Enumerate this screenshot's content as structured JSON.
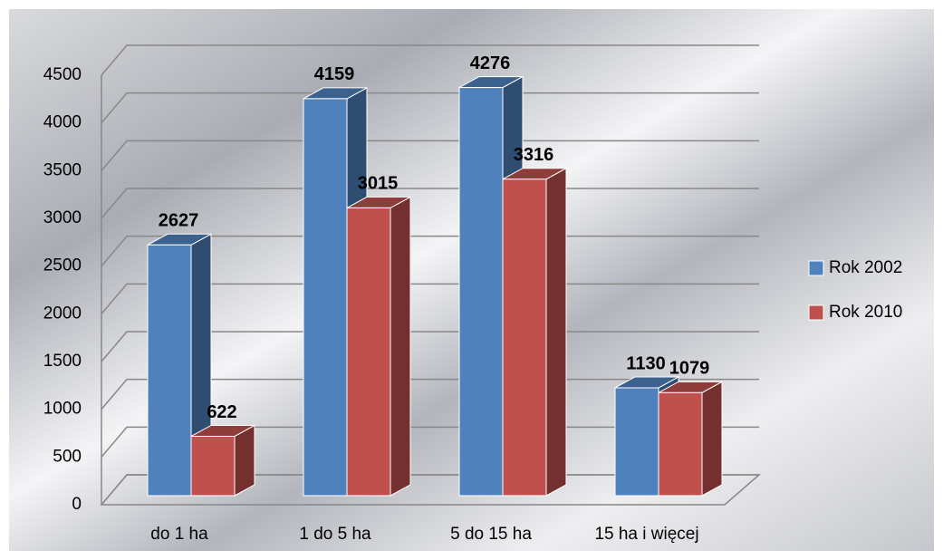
{
  "chart_data": {
    "type": "bar3d",
    "categories": [
      "do 1 ha",
      "1 do 5 ha",
      "5 do 15 ha",
      "15 ha i więcej"
    ],
    "series": [
      {
        "name": "Rok 2002",
        "color": "#4f81bd",
        "values": [
          2627,
          4159,
          4276,
          1130
        ]
      },
      {
        "name": "Rok 2010",
        "color": "#c0504d",
        "values": [
          622,
          3015,
          3316,
          1079
        ]
      }
    ],
    "ylim": [
      0,
      4500
    ],
    "yticks": [
      0,
      500,
      1000,
      1500,
      2000,
      2500,
      3000,
      3500,
      4000,
      4500
    ],
    "grid": true,
    "legend": "right"
  }
}
